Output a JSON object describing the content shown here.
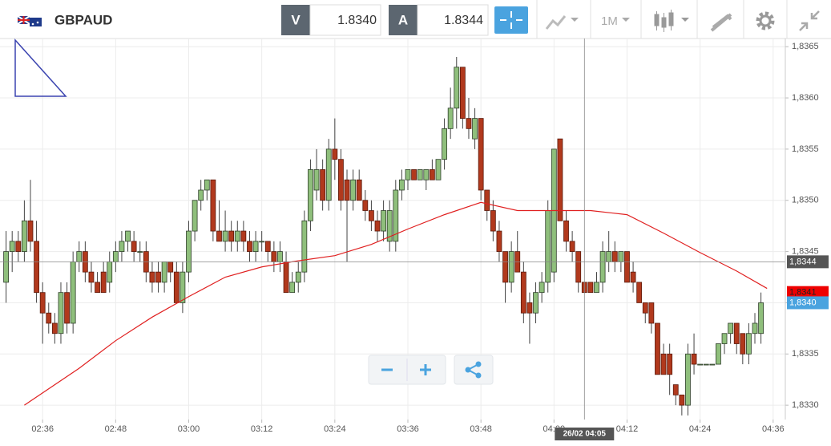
{
  "header": {
    "symbol": "GBPAUD",
    "bid_label": "V",
    "bid": "1.8340",
    "ask_label": "A",
    "ask": "1.8344",
    "timeframe": "1M"
  },
  "chart_data": {
    "type": "candlestick",
    "x": [
      "02:30",
      "02:31",
      "02:32",
      "02:33",
      "02:34",
      "02:35",
      "02:36",
      "02:37",
      "02:38",
      "02:39",
      "02:40",
      "02:41",
      "02:42",
      "02:43",
      "02:44",
      "02:45",
      "02:46",
      "02:47",
      "02:48",
      "02:49",
      "02:50",
      "02:51",
      "02:52",
      "02:53",
      "02:54",
      "02:55",
      "02:56",
      "02:57",
      "02:58",
      "02:59",
      "03:00",
      "03:01",
      "03:02",
      "03:03",
      "03:04",
      "03:05",
      "03:06",
      "03:07",
      "03:08",
      "03:09",
      "03:10",
      "03:11",
      "03:12",
      "03:13",
      "03:14",
      "03:15",
      "03:16",
      "03:17",
      "03:18",
      "03:19",
      "03:20",
      "03:21",
      "03:22",
      "03:23",
      "03:24",
      "03:25",
      "03:26",
      "03:27",
      "03:28",
      "03:29",
      "03:30",
      "03:31",
      "03:32",
      "03:33",
      "03:34",
      "03:35",
      "03:36",
      "03:37",
      "03:38",
      "03:39",
      "03:40",
      "03:41",
      "03:42",
      "03:43",
      "03:44",
      "03:45",
      "03:46",
      "03:47",
      "03:48",
      "03:49",
      "03:50",
      "03:51",
      "03:52",
      "03:53",
      "03:54",
      "03:55",
      "03:56",
      "03:57",
      "03:58",
      "03:59",
      "04:00",
      "04:01",
      "04:02",
      "04:03",
      "04:04",
      "04:05",
      "04:06",
      "04:07",
      "04:08",
      "04:09",
      "04:10",
      "04:11",
      "04:12",
      "04:13",
      "04:14",
      "04:15",
      "04:16",
      "04:17",
      "04:18",
      "04:19",
      "04:20",
      "04:21",
      "04:22",
      "04:23",
      "04:24",
      "04:25",
      "04:26",
      "04:27",
      "04:28",
      "04:29",
      "04:30",
      "04:31",
      "04:32",
      "04:33",
      "04:34"
    ],
    "open": [
      1.8342,
      1.8345,
      1.8346,
      1.8345,
      1.8348,
      1.8346,
      1.8341,
      1.8339,
      1.8338,
      1.8337,
      1.8341,
      1.8338,
      1.8344,
      1.8345,
      1.8343,
      1.8342,
      1.8343,
      1.8342,
      1.8344,
      1.8345,
      1.8346,
      1.8346,
      1.8345,
      1.8345,
      1.8343,
      1.8343,
      1.8342,
      1.8344,
      1.8343,
      1.834,
      1.8343,
      1.8347,
      1.835,
      1.8351,
      1.8352,
      1.8347,
      1.8346,
      1.8347,
      1.8346,
      1.8347,
      1.8346,
      1.8345,
      1.8346,
      1.8346,
      1.8345,
      1.8344,
      1.8344,
      1.8341,
      1.8342,
      1.8343,
      1.8348,
      1.8351,
      1.8353,
      1.835,
      1.8355,
      1.8354,
      1.8352,
      1.835,
      1.8352,
      1.835,
      1.8349,
      1.8348,
      1.8347,
      1.8346,
      1.8346,
      1.8351,
      1.8352,
      1.8353,
      1.8352,
      1.8352,
      1.8353,
      1.8352,
      1.8354,
      1.8357,
      1.8359,
      1.8363,
      1.8358,
      1.8356,
      1.8358,
      1.8351,
      1.8349,
      1.8347,
      1.8345,
      1.8342,
      1.8345,
      1.8343,
      1.834,
      1.8339,
      1.8341,
      1.8342,
      1.8343,
      1.8356,
      1.8348,
      1.8346,
      1.8345,
      1.8342,
      1.8342,
      1.8341,
      1.8342,
      1.8344,
      1.8345,
      1.8344,
      1.8345,
      1.8343,
      1.8342,
      1.834,
      1.834,
      1.8338,
      1.8335,
      1.8335,
      1.8332,
      1.8331,
      1.833,
      1.8335,
      1.8334,
      1.8334,
      1.8334,
      1.8334,
      1.8336,
      1.8337,
      1.8338,
      1.8337,
      1.8335,
      1.8337,
      1.8337
    ],
    "high": [
      1.8347,
      1.8347,
      1.8347,
      1.835,
      1.8352,
      1.8348,
      1.8342,
      1.834,
      1.8339,
      1.8342,
      1.8342,
      1.8345,
      1.8346,
      1.8346,
      1.8344,
      1.8343,
      1.8344,
      1.8345,
      1.8346,
      1.8347,
      1.8347,
      1.8347,
      1.8346,
      1.8346,
      1.8344,
      1.8344,
      1.8344,
      1.8344,
      1.8344,
      1.8344,
      1.8348,
      1.835,
      1.8352,
      1.8352,
      1.8352,
      1.835,
      1.8349,
      1.8348,
      1.8348,
      1.8348,
      1.8347,
      1.8347,
      1.8347,
      1.8346,
      1.8346,
      1.8346,
      1.8345,
      1.8343,
      1.8344,
      1.8349,
      1.8354,
      1.8355,
      1.8354,
      1.8356,
      1.8358,
      1.8355,
      1.8353,
      1.8353,
      1.8353,
      1.8351,
      1.835,
      1.8349,
      1.835,
      1.835,
      1.8352,
      1.8353,
      1.8353,
      1.8353,
      1.8353,
      1.8353,
      1.8354,
      1.8354,
      1.8358,
      1.8361,
      1.8364,
      1.8363,
      1.836,
      1.8359,
      1.8358,
      1.8351,
      1.835,
      1.8348,
      1.8345,
      1.8346,
      1.8347,
      1.8344,
      1.8341,
      1.8342,
      1.8343,
      1.835,
      1.8355,
      1.8356,
      1.8349,
      1.8347,
      1.8345,
      1.8342,
      1.8342,
      1.8343,
      1.8346,
      1.8347,
      1.8346,
      1.8345,
      1.8345,
      1.8344,
      1.8342,
      1.834,
      1.834,
      1.8338,
      1.8336,
      1.8336,
      1.8332,
      1.8331,
      1.8336,
      1.8337,
      1.8334,
      1.8334,
      1.8334,
      1.8336,
      1.8337,
      1.8338,
      1.8338,
      1.8337,
      1.8338,
      1.8339,
      1.8341
    ],
    "low": [
      1.834,
      1.8343,
      1.8344,
      1.8344,
      1.8345,
      1.834,
      1.8336,
      1.8337,
      1.8336,
      1.8336,
      1.8337,
      1.8337,
      1.8343,
      1.8342,
      1.8341,
      1.8341,
      1.8341,
      1.8341,
      1.8343,
      1.8344,
      1.8345,
      1.8344,
      1.8344,
      1.8342,
      1.8341,
      1.8341,
      1.8341,
      1.8342,
      1.834,
      1.8339,
      1.8342,
      1.8346,
      1.8349,
      1.835,
      1.8346,
      1.8346,
      1.8345,
      1.8345,
      1.8345,
      1.8345,
      1.8344,
      1.8344,
      1.8345,
      1.8344,
      1.8343,
      1.8343,
      1.8341,
      1.8341,
      1.8341,
      1.8342,
      1.8347,
      1.835,
      1.8349,
      1.8349,
      1.8352,
      1.8349,
      1.8344,
      1.8349,
      1.835,
      1.8348,
      1.8347,
      1.8346,
      1.8346,
      1.8345,
      1.8345,
      1.835,
      1.8351,
      1.8352,
      1.8352,
      1.8351,
      1.8352,
      1.8352,
      1.8353,
      1.8356,
      1.8357,
      1.8357,
      1.8356,
      1.8355,
      1.835,
      1.8348,
      1.8346,
      1.8344,
      1.834,
      1.8341,
      1.8343,
      1.8338,
      1.8336,
      1.8338,
      1.834,
      1.8341,
      1.8342,
      1.8348,
      1.8345,
      1.8344,
      1.8341,
      1.8341,
      1.8341,
      1.8341,
      1.8341,
      1.8343,
      1.8343,
      1.8343,
      1.8342,
      1.8341,
      1.834,
      1.8338,
      1.8337,
      1.8333,
      1.8333,
      1.8331,
      1.833,
      1.8329,
      1.8329,
      1.8333,
      1.8334,
      1.8334,
      1.8334,
      1.8334,
      1.8335,
      1.8336,
      1.8335,
      1.8334,
      1.8334,
      1.8336,
      1.8336
    ],
    "close": [
      1.8345,
      1.8346,
      1.8345,
      1.8348,
      1.8346,
      1.8341,
      1.8339,
      1.8338,
      1.8337,
      1.8341,
      1.8338,
      1.8344,
      1.8345,
      1.8343,
      1.8342,
      1.8341,
      1.8341,
      1.8344,
      1.8345,
      1.8346,
      1.8347,
      1.8345,
      1.8345,
      1.8343,
      1.8342,
      1.8342,
      1.8344,
      1.8343,
      1.834,
      1.8343,
      1.8347,
      1.835,
      1.8351,
      1.8352,
      1.8347,
      1.8346,
      1.8347,
      1.8346,
      1.8347,
      1.8346,
      1.8345,
      1.8346,
      1.8346,
      1.8345,
      1.8344,
      1.8345,
      1.8341,
      1.8342,
      1.8343,
      1.8348,
      1.8353,
      1.8353,
      1.835,
      1.8355,
      1.8354,
      1.835,
      1.835,
      1.8352,
      1.835,
      1.8349,
      1.8348,
      1.8347,
      1.8349,
      1.8349,
      1.8351,
      1.8352,
      1.8353,
      1.8352,
      1.8353,
      1.8353,
      1.8352,
      1.8354,
      1.8357,
      1.8359,
      1.8363,
      1.8358,
      1.8357,
      1.8358,
      1.8351,
      1.8349,
      1.8347,
      1.8345,
      1.8342,
      1.8345,
      1.8343,
      1.8339,
      1.8339,
      1.8341,
      1.8342,
      1.8349,
      1.8355,
      1.8348,
      1.8346,
      1.8345,
      1.8342,
      1.8341,
      1.8341,
      1.8342,
      1.8345,
      1.8345,
      1.8344,
      1.8345,
      1.8342,
      1.8342,
      1.834,
      1.8339,
      1.8338,
      1.8333,
      1.8333,
      1.8333,
      1.8331,
      1.833,
      1.8335,
      1.8334,
      1.8334,
      1.8334,
      1.8334,
      1.8336,
      1.8337,
      1.8338,
      1.8336,
      1.8335,
      1.8337,
      1.8338,
      1.834
    ],
    "up_color": "#8fbf7c",
    "down_color": "#b1391d",
    "ma": {
      "color": "#e02020",
      "x": [
        "02:33",
        "02:42",
        "02:48",
        "02:54",
        "03:00",
        "03:06",
        "03:12",
        "03:18",
        "03:24",
        "03:30",
        "03:36",
        "03:42",
        "03:48",
        "03:54",
        "04:00",
        "04:06",
        "04:12",
        "04:18",
        "04:24",
        "04:30",
        "04:35"
      ],
      "values": [
        1.833,
        1.83336,
        1.83363,
        1.83386,
        1.83406,
        1.83425,
        1.83435,
        1.83441,
        1.83446,
        1.83457,
        1.83472,
        1.83486,
        1.83498,
        1.8349,
        1.8349,
        1.8349,
        1.83486,
        1.83468,
        1.83449,
        1.83431,
        1.83414
      ]
    },
    "xlim": [
      "02:29",
      "04:38"
    ],
    "xticks": [
      "02:36",
      "02:48",
      "03:00",
      "03:12",
      "03:24",
      "03:36",
      "03:48",
      "04:00",
      "04:12",
      "04:24",
      "04:36"
    ],
    "ylim": [
      1.83286,
      1.83658
    ],
    "yticks": [
      {
        "value": 1.833,
        "label": "1,8330"
      },
      {
        "value": 1.8335,
        "label": "1,8335"
      },
      {
        "value": 1.834,
        "label": "1,8340"
      },
      {
        "value": 1.8345,
        "label": "1,8345"
      },
      {
        "value": 1.835,
        "label": "1,8350"
      },
      {
        "value": 1.8355,
        "label": "1,8355"
      },
      {
        "value": 1.836,
        "label": "1,8360"
      },
      {
        "value": 1.8365,
        "label": "1,8365"
      }
    ],
    "grid": true,
    "price_labels": [
      {
        "value": 1.8341,
        "label": "1,8341",
        "color": "#ee0000"
      },
      {
        "value": 1.834,
        "label": "1,8340",
        "color": "#4aa3df"
      }
    ],
    "crosshair": {
      "time_label": "26/02 04:05",
      "price": {
        "value": 1.8344,
        "label": "1,8344"
      },
      "color": "#555555"
    }
  }
}
